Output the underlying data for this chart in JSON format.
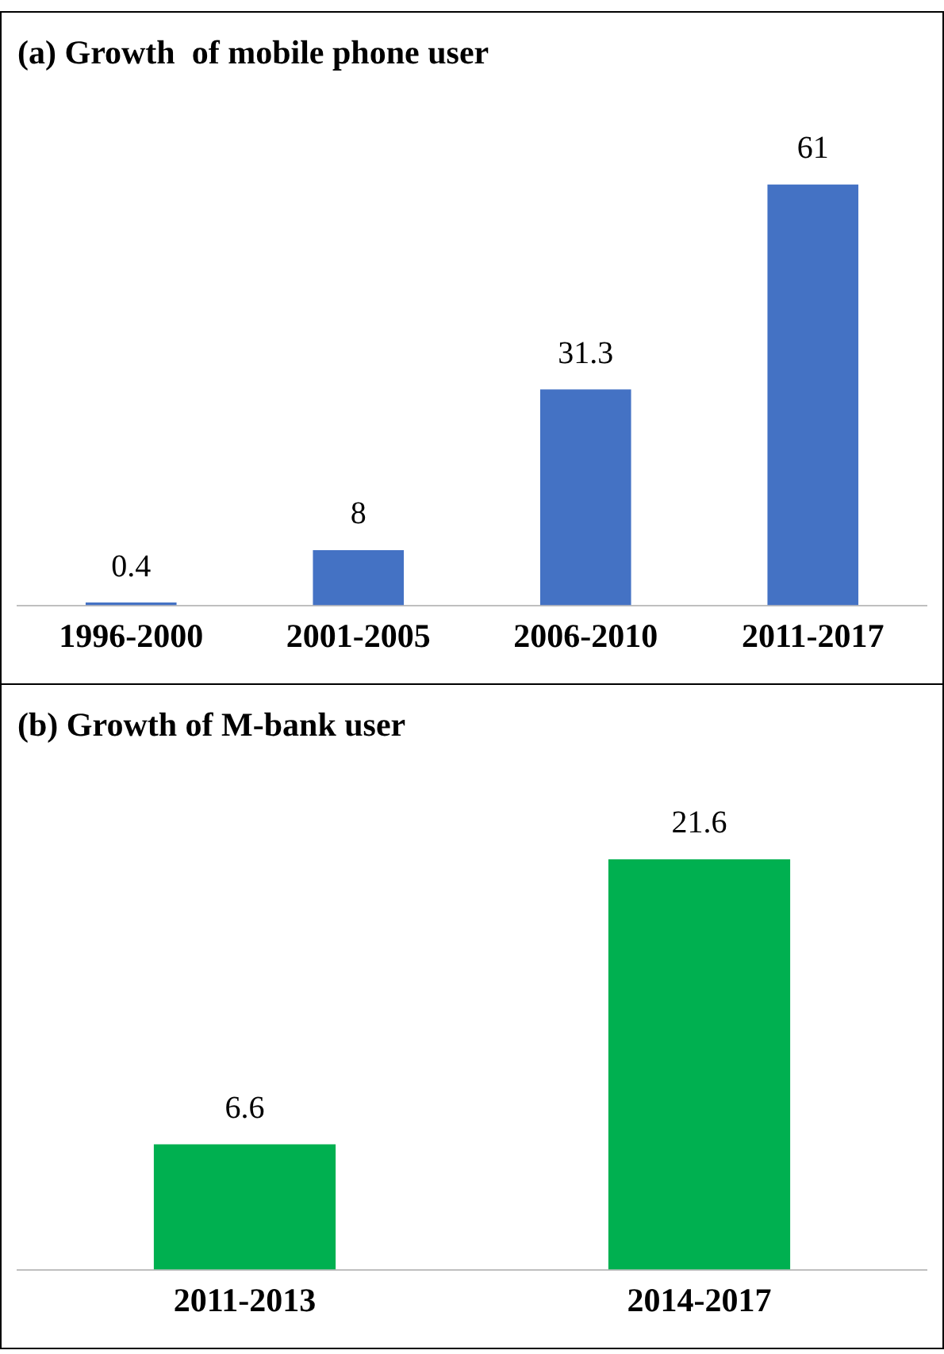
{
  "chart_data": [
    {
      "type": "bar",
      "title": "(a) Growth  of mobile phone user",
      "categories": [
        "1996-2000",
        "2001-2005",
        "2006-2010",
        "2011-2017"
      ],
      "values": [
        0.4,
        8,
        31.3,
        61
      ],
      "color": "#4472c4",
      "data_labels": true
    },
    {
      "type": "bar",
      "title": "(b) Growth of M-bank user",
      "categories": [
        "2011-2013",
        "2014-2017"
      ],
      "values": [
        6.6,
        21.6
      ],
      "color": "#00b050",
      "data_labels": true
    }
  ]
}
